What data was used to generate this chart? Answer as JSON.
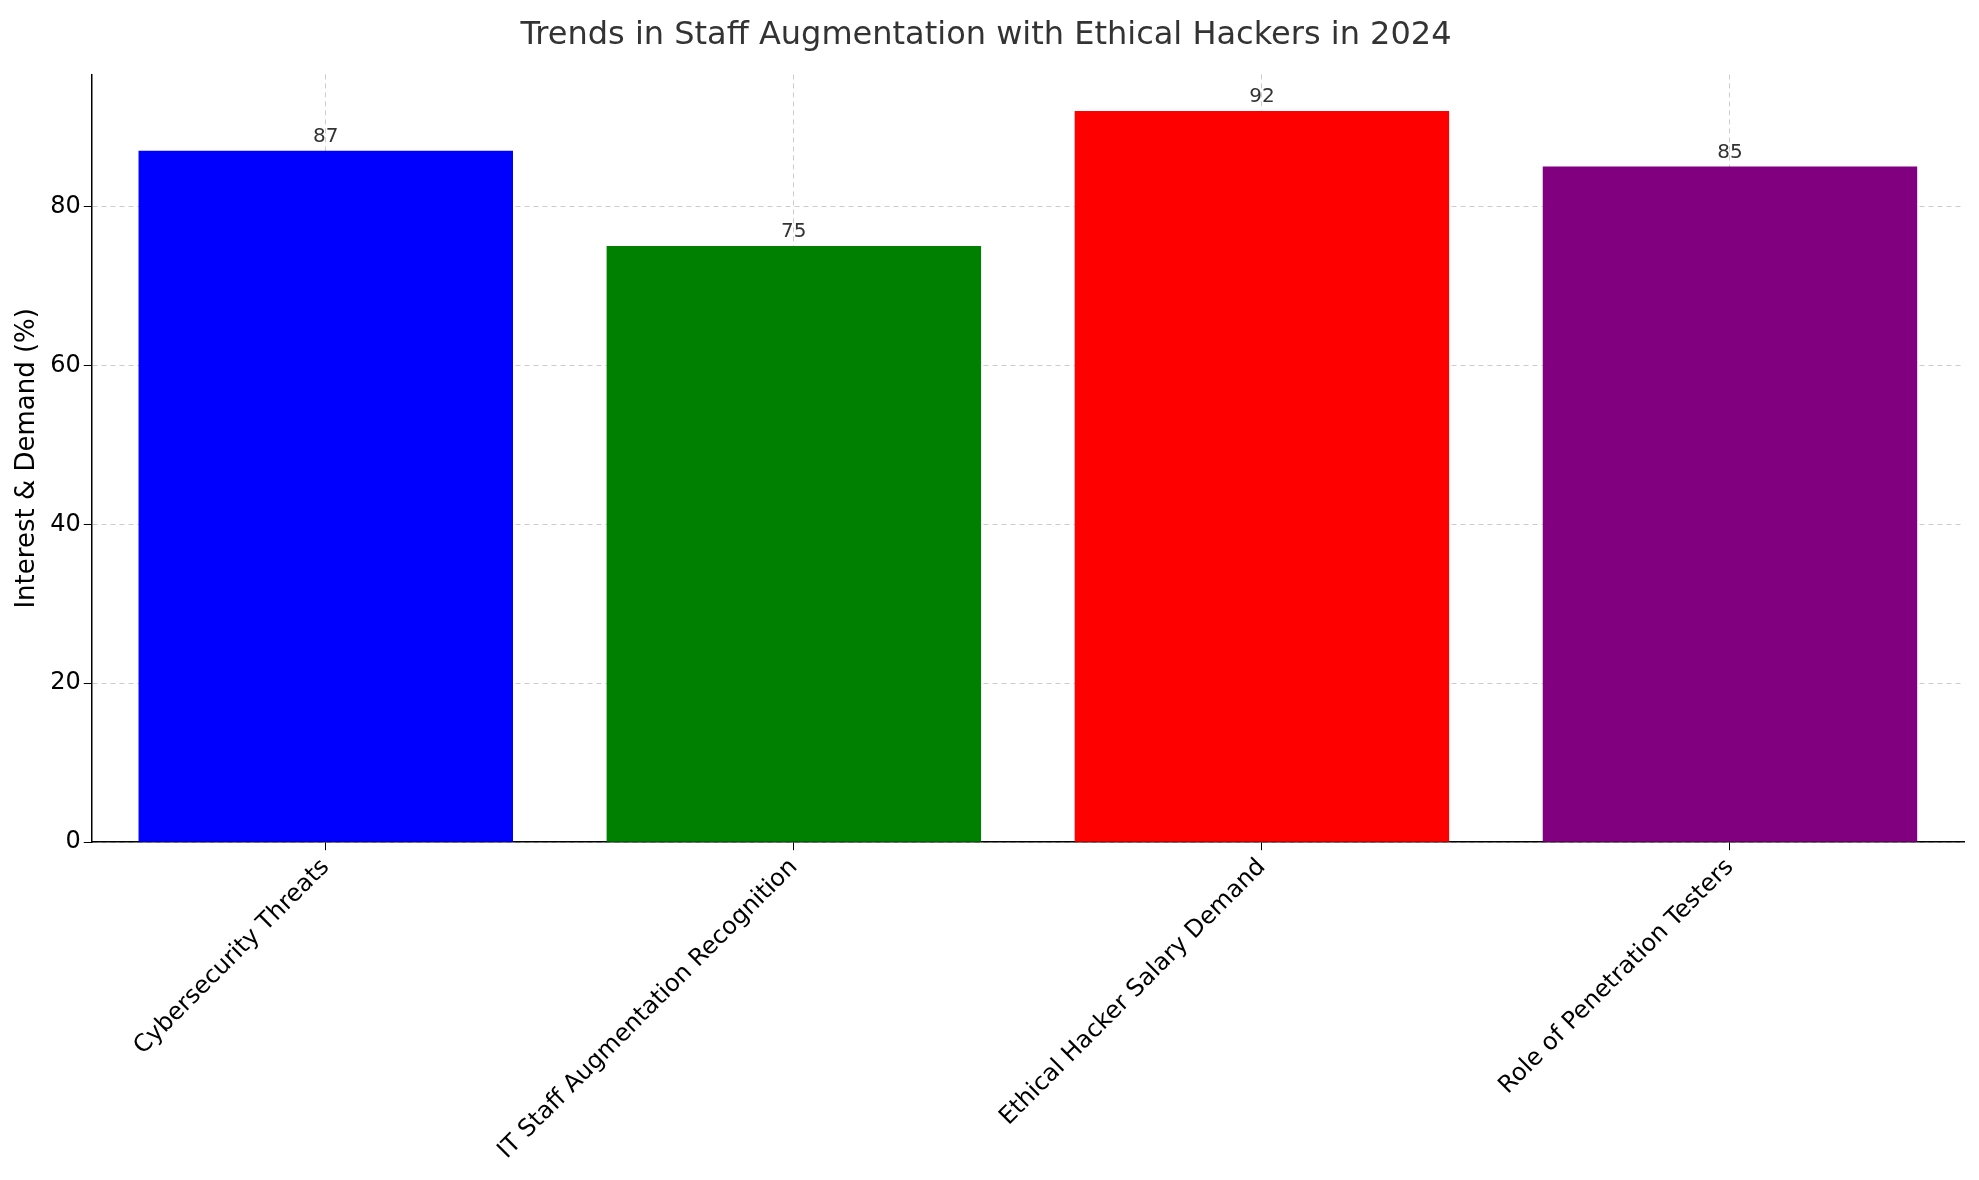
{
  "chart_data": {
    "type": "bar",
    "title": "Trends in Staff Augmentation with Ethical Hackers in 2024",
    "ylabel": "Interest & Demand (%)",
    "categories": [
      "Cybersecurity Threats",
      "IT Staff Augmentation Recognition",
      "Ethical Hacker Salary Demand",
      "Role of Penetration Testers"
    ],
    "values": [
      87,
      75,
      92,
      85
    ],
    "colors": [
      "#0000ff",
      "#008000",
      "#ff0000",
      "#800080"
    ],
    "ylim": [
      0,
      96.6
    ],
    "yticks": [
      0,
      20,
      40,
      60,
      80
    ],
    "grid": true,
    "data_labels": true,
    "legend": false
  }
}
